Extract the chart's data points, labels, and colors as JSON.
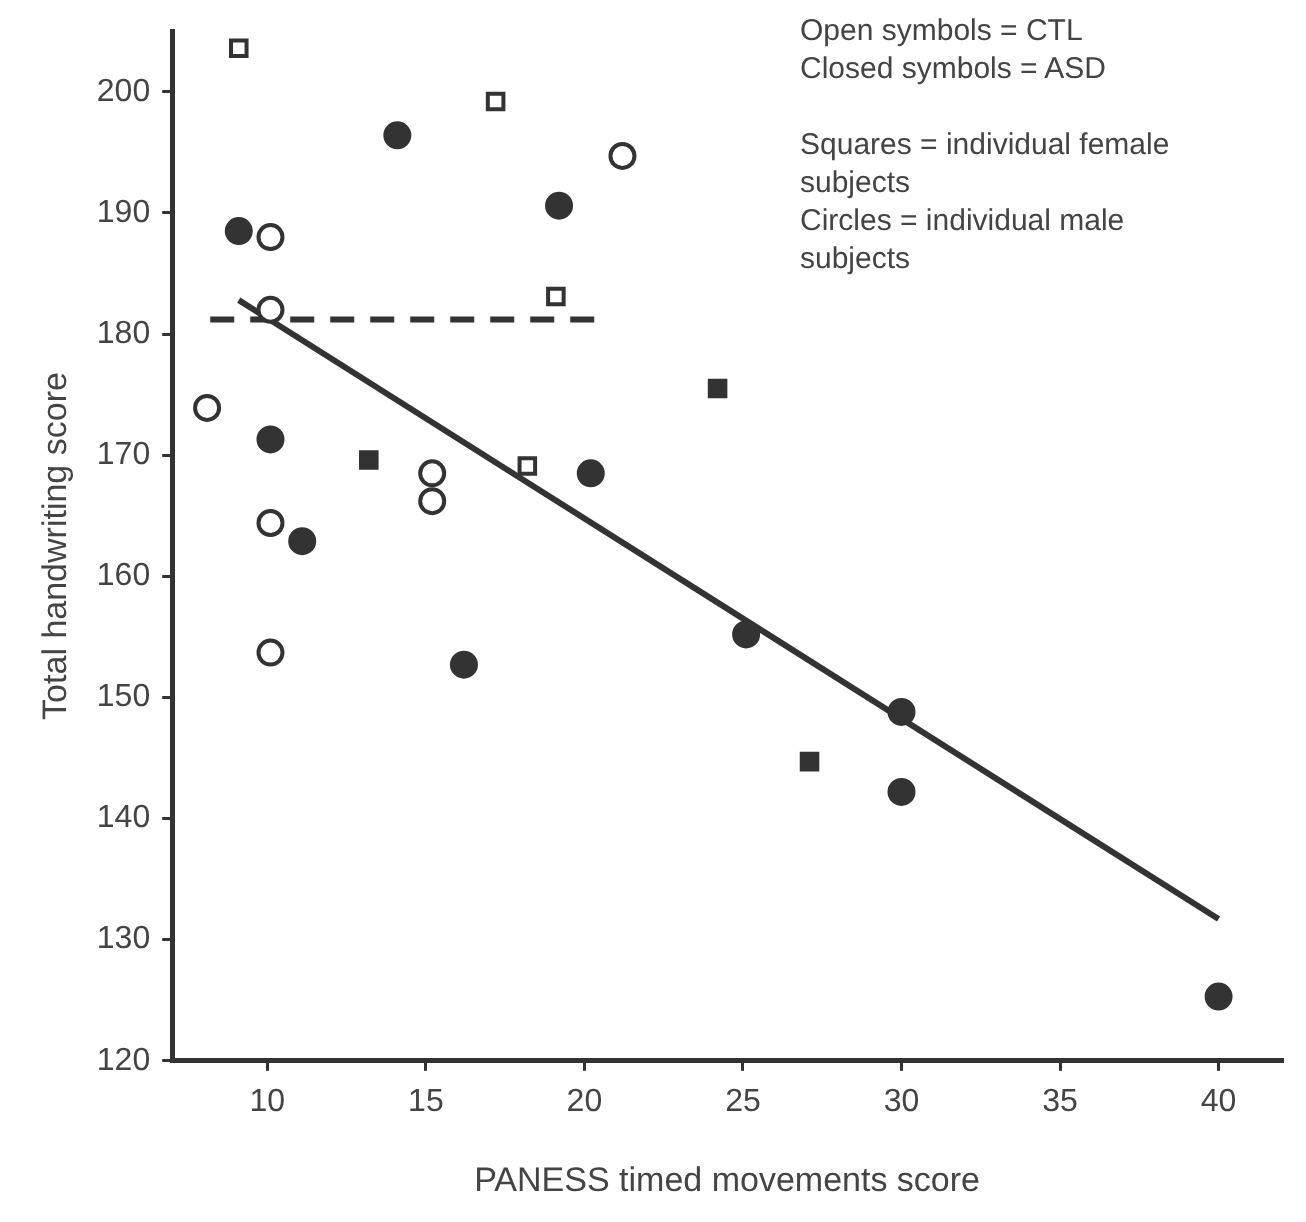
{
  "chart_data": {
    "type": "scatter",
    "xlabel": "PANESS timed movements score",
    "ylabel": "Total handwriting score",
    "xlim": [
      7,
      42
    ],
    "xticks": [
      10,
      15,
      20,
      25,
      30,
      35,
      40
    ],
    "ylim": [
      120,
      205
    ],
    "yticks": [
      120,
      130,
      140,
      150,
      160,
      170,
      180,
      190,
      200
    ],
    "grid": false,
    "legend": false,
    "annotations": [
      "Open symbols = CTL",
      "Closed symbols = ASD",
      "Squares = individual female subjects",
      "Circles = individual male subjects"
    ],
    "series": [
      {
        "type": "scatter",
        "marker": "square",
        "color": "#ffffff",
        "x": [
          9.1,
          17.2,
          19.1,
          18.2
        ],
        "values": [
          203.6,
          199.2,
          183.1,
          169.1
        ]
      },
      {
        "type": "scatter",
        "marker": "circle",
        "color": "#ffffff",
        "x": [
          10.1,
          10.1,
          8.1,
          10.1,
          10.1,
          15.2,
          15.2,
          21.2
        ],
        "values": [
          188.0,
          182.0,
          173.9,
          164.4,
          153.7,
          168.5,
          166.2,
          194.7
        ]
      },
      {
        "type": "scatter",
        "marker": "circle",
        "color": "#333333",
        "x": [
          9.1,
          14.1,
          19.2,
          10.1,
          11.1,
          16.2,
          20.2,
          25.1,
          30,
          30,
          40
        ],
        "values": [
          188.5,
          196.4,
          190.6,
          171.3,
          162.9,
          152.7,
          168.5,
          155.2,
          148.8,
          142.2,
          125.3
        ]
      },
      {
        "type": "scatter",
        "marker": "square",
        "color": "#333333",
        "x": [
          13.2,
          24.2,
          27.1
        ],
        "values": [
          169.6,
          175.5,
          144.7
        ]
      },
      {
        "type": "line",
        "marker": "none",
        "line_style": "solid",
        "color": "#333333",
        "x": [
          9.1,
          40
        ],
        "values": [
          182.8,
          131.7
        ]
      },
      {
        "type": "line",
        "marker": "none",
        "line_style": "dashed",
        "color": "#333333",
        "x": [
          8.2,
          20.4
        ],
        "values": [
          181.2,
          181.2
        ]
      }
    ]
  }
}
